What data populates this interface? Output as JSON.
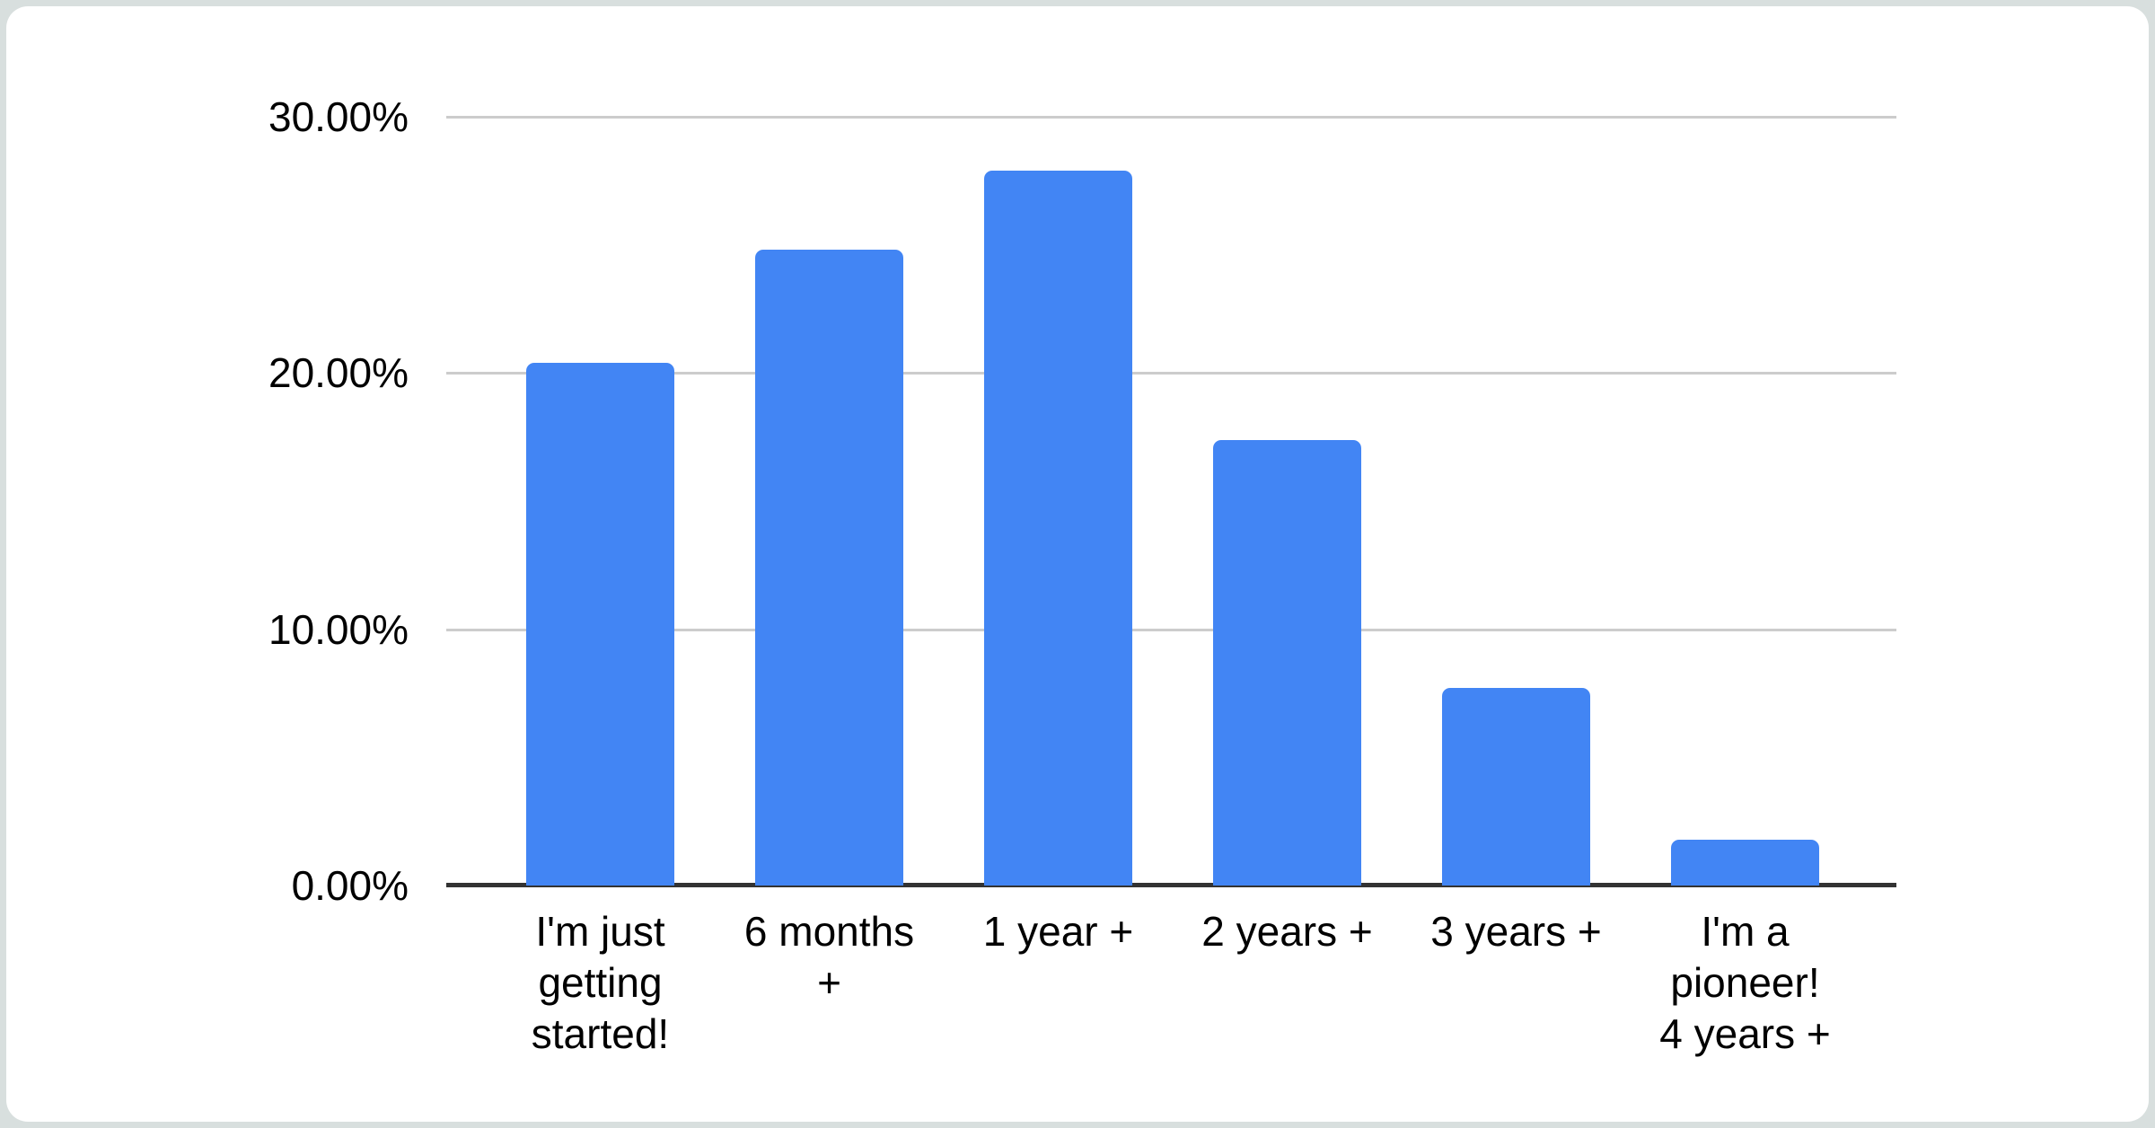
{
  "chart_data": {
    "type": "bar",
    "title": "",
    "xlabel": "",
    "ylabel": "",
    "categories": [
      "I'm just getting started!",
      "6 months +",
      "1 year +",
      "2 years +",
      "3 years +",
      "I'm a pioneer! 4 years +"
    ],
    "category_display": [
      "I'm just\ngetting\nstarted!",
      "6 months\n+",
      "1 year +",
      "2 years +",
      "3 years +",
      "I'm a\npioneer!\n4 years +"
    ],
    "values": [
      20.4,
      24.8,
      27.9,
      17.4,
      7.7,
      1.8
    ],
    "unit": "%",
    "ylim": [
      0,
      30
    ],
    "y_ticks": [
      "0.00%",
      "10.00%",
      "20.00%",
      "30.00%"
    ],
    "y_tick_values": [
      0,
      10,
      20,
      30
    ],
    "grid": true,
    "legend": "none",
    "colors": {
      "bar": "#4285f4",
      "gridline": "#cccccc",
      "axis": "#333333",
      "label": "#000000",
      "card_background": "#ffffff",
      "page_background": "#d8dfde"
    }
  }
}
